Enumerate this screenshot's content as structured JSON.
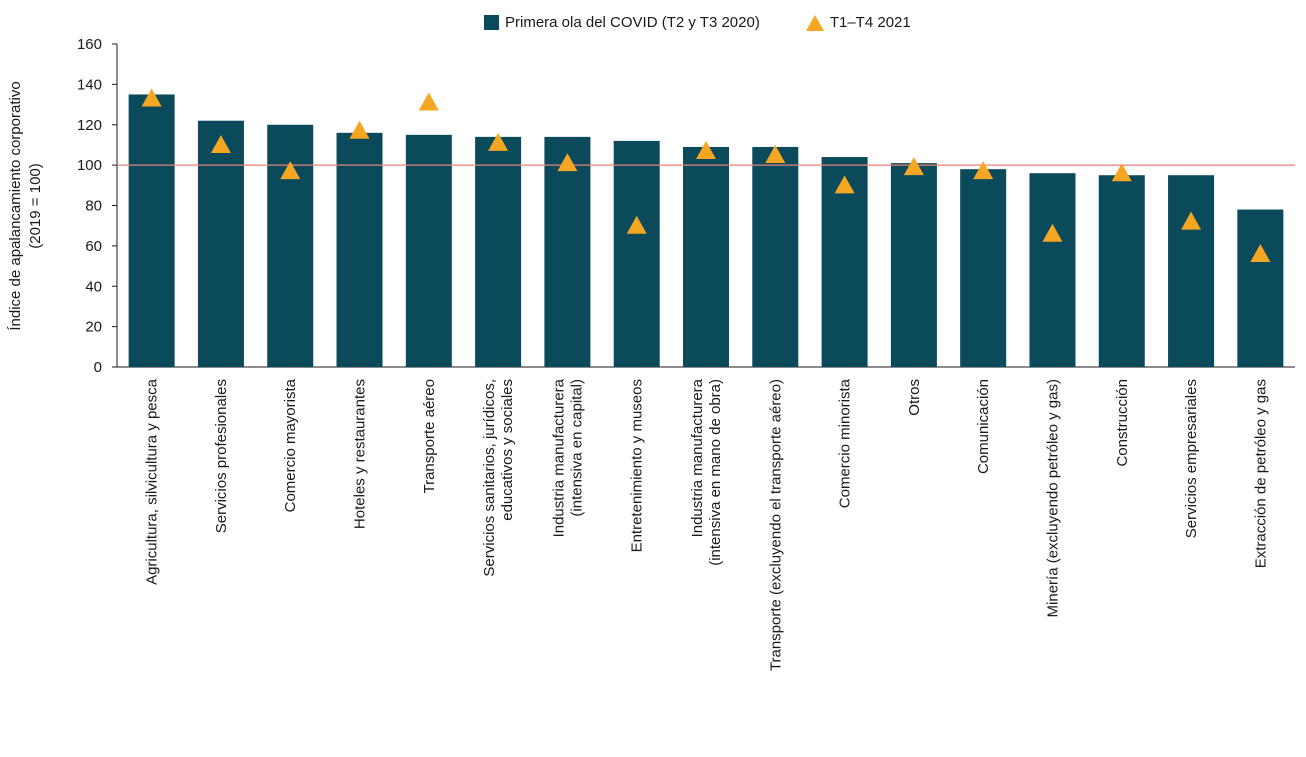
{
  "chart_data": {
    "type": "bar",
    "ylabel": "Índice de apalancamiento corporativo",
    "ylabel2": "(2019 = 100)",
    "ylim": [
      0,
      160
    ],
    "yticks": [
      0,
      20,
      40,
      60,
      80,
      100,
      120,
      140,
      160
    ],
    "reference_line": 100,
    "legend_position": "top-center",
    "categories": [
      [
        "Agricultura, silvicultura y pesca"
      ],
      [
        "Servicios profesionales"
      ],
      [
        "Comercio mayorista"
      ],
      [
        "Hoteles y restaurantes"
      ],
      [
        "Transporte aéreo"
      ],
      [
        "Servicios sanitarios, jurídicos,",
        "educativos y sociales"
      ],
      [
        "Industria manufacturera",
        "(intensiva en capital)"
      ],
      [
        "Entretenimiento y museos"
      ],
      [
        "Industria manufacturera",
        "(intensiva en mano de obra)"
      ],
      [
        "Transporte (excluyendo el transporte aéreo)"
      ],
      [
        "Comercio minorista"
      ],
      [
        "Otros"
      ],
      [
        "Comunicación"
      ],
      [
        "Minería (excluyendo petróleo y gas)"
      ],
      [
        "Construcción"
      ],
      [
        "Servicios empresariales"
      ],
      [
        "Extracción de petróleo y gas"
      ]
    ],
    "series": [
      {
        "name": "Primera ola del COVID (T2 y T3 2020)",
        "type": "bar",
        "color": "#0b4a5a",
        "values": [
          135,
          122,
          120,
          116,
          115,
          114,
          114,
          112,
          109,
          109,
          104,
          101,
          98,
          96,
          95,
          95,
          78
        ]
      },
      {
        "name": "T1–T4 2021",
        "type": "marker-triangle",
        "color": "#f5a623",
        "values": [
          133,
          110,
          97,
          117,
          131,
          111,
          101,
          70,
          107,
          105,
          90,
          99,
          97,
          66,
          96,
          72,
          56
        ]
      }
    ],
    "reference_line_color": "#e8827a"
  }
}
